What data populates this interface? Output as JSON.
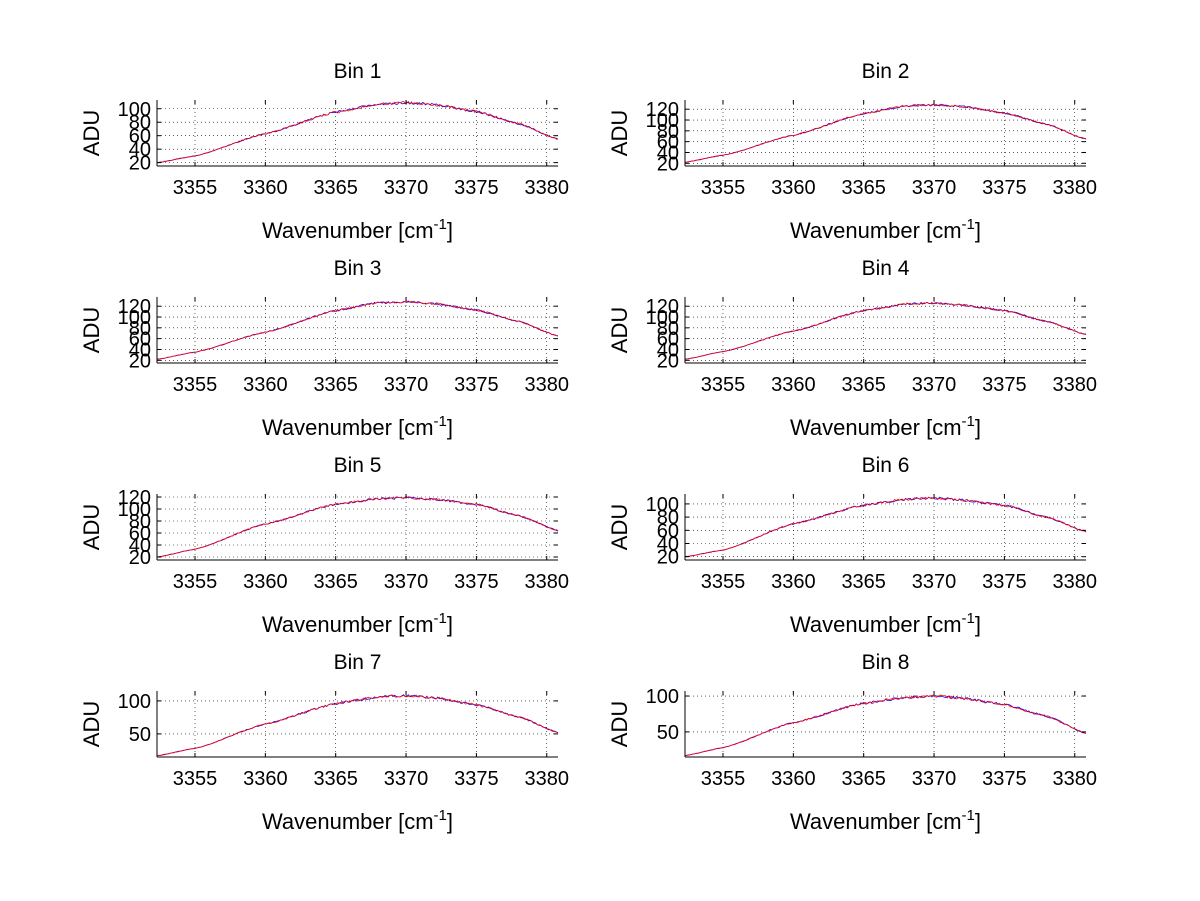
{
  "chart_data": [
    {
      "type": "line",
      "title": "Bin 1",
      "xlabel": "Wavenumber [cm",
      "xlabel_sup": "-1",
      "xlabel_end": "]",
      "ylabel": "ADU",
      "xlim": [
        3352.3,
        3380.8
      ],
      "ylim": [
        15,
        113
      ],
      "xticks": [
        3355,
        3360,
        3365,
        3370,
        3375,
        3380
      ],
      "yticks": [
        20,
        40,
        60,
        80,
        100
      ],
      "grid": true,
      "series": [
        {
          "name": "blue",
          "color": "#0000ff",
          "x": [
            3352.3,
            3355,
            3360,
            3365,
            3368,
            3370,
            3372,
            3375,
            3378,
            3380.8
          ],
          "y": [
            20,
            30,
            63,
            95,
            107,
            109,
            106,
            96,
            78,
            55
          ]
        },
        {
          "name": "red",
          "color": "#ff0000",
          "x": [
            3352.3,
            3355,
            3360,
            3365,
            3368,
            3370,
            3372,
            3375,
            3378,
            3380.8
          ],
          "y": [
            20,
            30,
            63,
            95,
            107,
            109,
            106,
            96,
            78,
            55
          ]
        }
      ]
    },
    {
      "type": "line",
      "title": "Bin 2",
      "xlabel": "Wavenumber [cm",
      "xlabel_sup": "-1",
      "xlabel_end": "]",
      "ylabel": "ADU",
      "xlim": [
        3352.3,
        3380.8
      ],
      "ylim": [
        15,
        137
      ],
      "xticks": [
        3355,
        3360,
        3365,
        3370,
        3375,
        3380
      ],
      "yticks": [
        20,
        40,
        60,
        80,
        100,
        120
      ],
      "grid": true,
      "series": [
        {
          "name": "blue",
          "color": "#0000ff",
          "x": [
            3352.3,
            3355,
            3360,
            3365,
            3368,
            3370,
            3372,
            3375,
            3378,
            3380.8
          ],
          "y": [
            22,
            35,
            72,
            112,
            126,
            128,
            125,
            113,
            92,
            65
          ]
        },
        {
          "name": "red",
          "color": "#ff0000",
          "x": [
            3352.3,
            3355,
            3360,
            3365,
            3368,
            3370,
            3372,
            3375,
            3378,
            3380.8
          ],
          "y": [
            22,
            35,
            72,
            112,
            126,
            128,
            125,
            113,
            92,
            65
          ]
        }
      ]
    },
    {
      "type": "line",
      "title": "Bin 3",
      "xlabel": "Wavenumber [cm",
      "xlabel_sup": "-1",
      "xlabel_end": "]",
      "ylabel": "ADU",
      "xlim": [
        3352.3,
        3380.8
      ],
      "ylim": [
        15,
        137
      ],
      "xticks": [
        3355,
        3360,
        3365,
        3370,
        3375,
        3380
      ],
      "yticks": [
        20,
        40,
        60,
        80,
        100,
        120
      ],
      "grid": true,
      "series": [
        {
          "name": "blue",
          "color": "#0000ff",
          "x": [
            3352.3,
            3355,
            3360,
            3365,
            3368,
            3370,
            3372,
            3375,
            3378,
            3380.8
          ],
          "y": [
            22,
            35,
            72,
            112,
            126,
            128,
            125,
            113,
            92,
            65
          ]
        },
        {
          "name": "red",
          "color": "#ff0000",
          "x": [
            3352.3,
            3355,
            3360,
            3365,
            3368,
            3370,
            3372,
            3375,
            3378,
            3380.8
          ],
          "y": [
            22,
            35,
            72,
            112,
            126,
            128,
            125,
            113,
            92,
            65
          ]
        }
      ]
    },
    {
      "type": "line",
      "title": "Bin 4",
      "xlabel": "Wavenumber [cm",
      "xlabel_sup": "-1",
      "xlabel_end": "]",
      "ylabel": "ADU",
      "xlim": [
        3352.3,
        3380.8
      ],
      "ylim": [
        15,
        137
      ],
      "xticks": [
        3355,
        3360,
        3365,
        3370,
        3375,
        3380
      ],
      "yticks": [
        20,
        40,
        60,
        80,
        100,
        120
      ],
      "grid": true,
      "series": [
        {
          "name": "blue",
          "color": "#0000ff",
          "x": [
            3352.3,
            3355,
            3360,
            3365,
            3368,
            3370,
            3372,
            3375,
            3378,
            3380.8
          ],
          "y": [
            22,
            36,
            74,
            112,
            124,
            126,
            122,
            112,
            92,
            68
          ]
        },
        {
          "name": "red",
          "color": "#ff0000",
          "x": [
            3352.3,
            3355,
            3360,
            3365,
            3368,
            3370,
            3372,
            3375,
            3378,
            3380.8
          ],
          "y": [
            22,
            36,
            74,
            112,
            124,
            126,
            122,
            112,
            92,
            68
          ]
        }
      ]
    },
    {
      "type": "line",
      "title": "Bin 5",
      "xlabel": "Wavenumber [cm",
      "xlabel_sup": "-1",
      "xlabel_end": "]",
      "ylabel": "ADU",
      "xlim": [
        3352.3,
        3380.8
      ],
      "ylim": [
        15,
        125
      ],
      "xticks": [
        3355,
        3360,
        3365,
        3370,
        3375,
        3380
      ],
      "yticks": [
        20,
        40,
        60,
        80,
        100,
        120
      ],
      "grid": true,
      "series": [
        {
          "name": "blue",
          "color": "#0000ff",
          "x": [
            3352.3,
            3355,
            3360,
            3365,
            3368,
            3370,
            3372,
            3375,
            3378,
            3380.8
          ],
          "y": [
            20,
            33,
            75,
            108,
            117,
            119,
            116,
            108,
            89,
            64
          ]
        },
        {
          "name": "red",
          "color": "#ff0000",
          "x": [
            3352.3,
            3355,
            3360,
            3365,
            3368,
            3370,
            3372,
            3375,
            3378,
            3380.8
          ],
          "y": [
            20,
            33,
            75,
            108,
            117,
            119,
            116,
            108,
            89,
            64
          ]
        }
      ]
    },
    {
      "type": "line",
      "title": "Bin 6",
      "xlabel": "Wavenumber [cm",
      "xlabel_sup": "-1",
      "xlabel_end": "]",
      "ylabel": "ADU",
      "xlim": [
        3352.3,
        3380.8
      ],
      "ylim": [
        15,
        115
      ],
      "xticks": [
        3355,
        3360,
        3365,
        3370,
        3375,
        3380
      ],
      "yticks": [
        20,
        40,
        60,
        80,
        100
      ],
      "grid": true,
      "series": [
        {
          "name": "blue",
          "color": "#0000ff",
          "x": [
            3352.3,
            3355,
            3360,
            3365,
            3368,
            3370,
            3372,
            3375,
            3378,
            3380.8
          ],
          "y": [
            20,
            30,
            70,
            98,
            107,
            109,
            106,
            98,
            80,
            58
          ]
        },
        {
          "name": "red",
          "color": "#ff0000",
          "x": [
            3352.3,
            3355,
            3360,
            3365,
            3368,
            3370,
            3372,
            3375,
            3378,
            3380.8
          ],
          "y": [
            20,
            30,
            70,
            98,
            107,
            109,
            106,
            98,
            80,
            58
          ]
        }
      ]
    },
    {
      "type": "line",
      "title": "Bin 7",
      "xlabel": "Wavenumber [cm",
      "xlabel_sup": "-1",
      "xlabel_end": "]",
      "ylabel": "ADU",
      "xlim": [
        3352.3,
        3380.8
      ],
      "ylim": [
        15,
        115
      ],
      "xticks": [
        3355,
        3360,
        3365,
        3370,
        3375,
        3380
      ],
      "yticks": [
        50,
        100
      ],
      "grid": true,
      "series": [
        {
          "name": "blue",
          "color": "#0000ff",
          "x": [
            3352.3,
            3355,
            3360,
            3365,
            3368,
            3370,
            3372,
            3375,
            3378,
            3380.8
          ],
          "y": [
            17,
            28,
            65,
            96,
            106,
            108,
            105,
            94,
            76,
            52
          ]
        },
        {
          "name": "red",
          "color": "#ff0000",
          "x": [
            3352.3,
            3355,
            3360,
            3365,
            3368,
            3370,
            3372,
            3375,
            3378,
            3380.8
          ],
          "y": [
            17,
            28,
            65,
            96,
            106,
            108,
            105,
            94,
            76,
            52
          ]
        }
      ]
    },
    {
      "type": "line",
      "title": "Bin 8",
      "xlabel": "Wavenumber [cm",
      "xlabel_sup": "-1",
      "xlabel_end": "]",
      "ylabel": "ADU",
      "xlim": [
        3352.3,
        3380.8
      ],
      "ylim": [
        15,
        107
      ],
      "xticks": [
        3355,
        3360,
        3365,
        3370,
        3375,
        3380
      ],
      "yticks": [
        50,
        100
      ],
      "grid": true,
      "series": [
        {
          "name": "blue",
          "color": "#0000ff",
          "x": [
            3352.3,
            3355,
            3360,
            3365,
            3368,
            3370,
            3372,
            3375,
            3378,
            3380.8
          ],
          "y": [
            17,
            28,
            63,
            90,
            98,
            100,
            97,
            88,
            72,
            48
          ]
        },
        {
          "name": "red",
          "color": "#ff0000",
          "x": [
            3352.3,
            3355,
            3360,
            3365,
            3368,
            3370,
            3372,
            3375,
            3378,
            3380.8
          ],
          "y": [
            17,
            28,
            63,
            90,
            98,
            100,
            97,
            88,
            72,
            48
          ]
        }
      ]
    }
  ]
}
